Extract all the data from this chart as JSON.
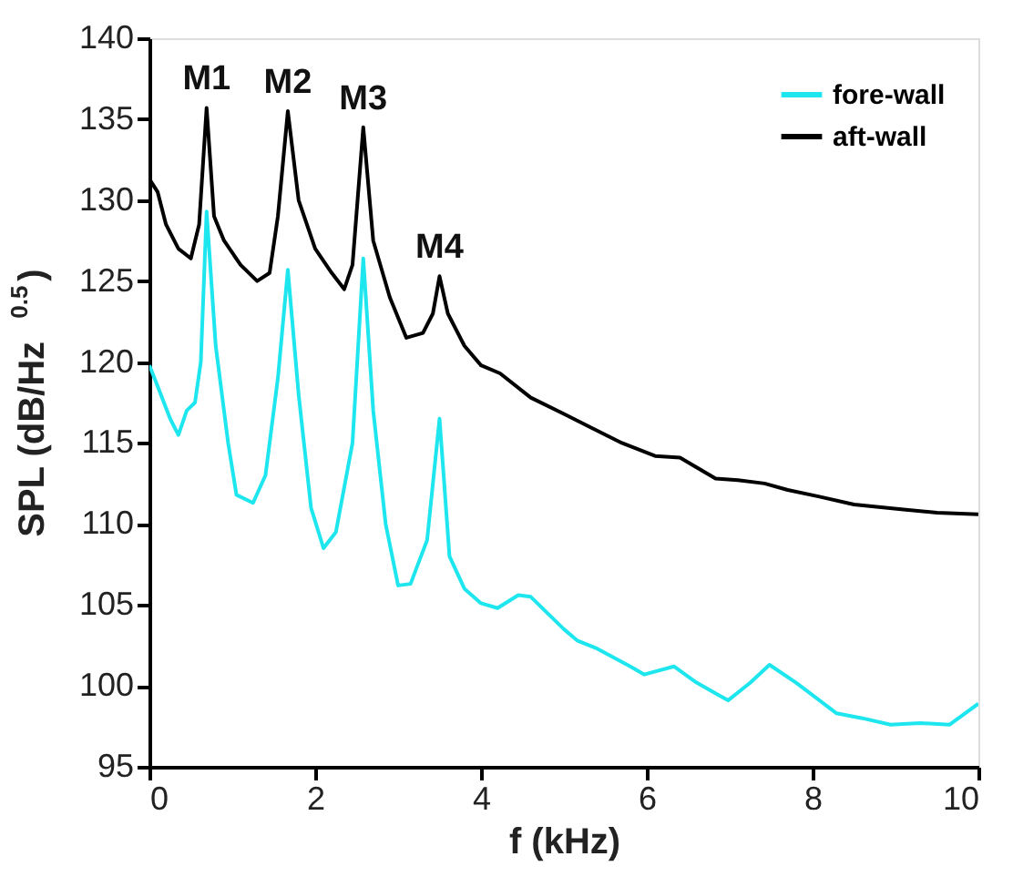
{
  "chart_data": {
    "type": "line",
    "xlabel": "f (kHz)",
    "ylabel": "SPL (dB/Hz$^{0.5}$)",
    "xlim": [
      0,
      10
    ],
    "xticks": [
      0,
      2,
      4,
      6,
      8,
      10
    ],
    "ylim": [
      95,
      140
    ],
    "yticks": [
      95,
      100,
      105,
      110,
      115,
      120,
      125,
      130,
      135,
      140
    ],
    "grid": false,
    "legend": "top right",
    "marker": "none",
    "line_style": "solid",
    "series": [
      {
        "name": "fore-wall",
        "color": "#1ee6ef",
        "x": [
          0,
          0.1,
          0.25,
          0.35,
          0.45,
          0.55,
          0.62,
          0.69,
          0.8,
          0.95,
          1.05,
          1.25,
          1.4,
          1.55,
          1.67,
          1.8,
          1.95,
          2.1,
          2.25,
          2.45,
          2.58,
          2.7,
          2.85,
          3.0,
          3.15,
          3.35,
          3.5,
          3.62,
          3.8,
          4.0,
          4.2,
          4.45,
          4.6,
          5.0,
          5.16,
          5.4,
          5.8,
          5.97,
          6.33,
          6.6,
          6.98,
          7.25,
          7.48,
          7.8,
          8.29,
          8.6,
          8.94,
          9.3,
          9.65,
          10.0
        ],
        "values": [
          119.8,
          118.5,
          116.5,
          115.5,
          117,
          117.5,
          120,
          129.3,
          121,
          115,
          111.8,
          111.3,
          113,
          119,
          125.7,
          118,
          111,
          108.5,
          109.5,
          115,
          126.4,
          117,
          110,
          106.2,
          106.3,
          109,
          116.5,
          108,
          106,
          105.1,
          104.8,
          105.6,
          105.5,
          103.5,
          102.8,
          102.3,
          101.2,
          100.7,
          101.2,
          100.2,
          99.1,
          100.2,
          101.3,
          100.2,
          98.3,
          98,
          97.6,
          97.7,
          97.6,
          98.9
        ]
      },
      {
        "name": "aft-wall",
        "color": "#000000",
        "x": [
          0,
          0.1,
          0.2,
          0.35,
          0.5,
          0.6,
          0.69,
          0.78,
          0.9,
          1.1,
          1.3,
          1.45,
          1.55,
          1.67,
          1.8,
          2.0,
          2.2,
          2.35,
          2.45,
          2.58,
          2.7,
          2.9,
          3.1,
          3.3,
          3.42,
          3.5,
          3.6,
          3.8,
          4.0,
          4.23,
          4.6,
          5.0,
          5.31,
          5.7,
          6.1,
          6.4,
          6.83,
          7.1,
          7.42,
          7.7,
          8.07,
          8.5,
          9.07,
          9.5,
          10.0
        ],
        "values": [
          131.3,
          130.5,
          128.5,
          127,
          126.4,
          128.5,
          135.7,
          129,
          127.5,
          126,
          125,
          125.5,
          129,
          135.5,
          130,
          127,
          125.5,
          124.5,
          126,
          134.5,
          127.5,
          124,
          121.5,
          121.8,
          123,
          125.3,
          123,
          121,
          119.8,
          119.3,
          117.8,
          116.8,
          116,
          115,
          114.2,
          114.1,
          112.8,
          112.7,
          112.5,
          112.1,
          111.7,
          111.2,
          110.9,
          110.7,
          110.6
        ]
      }
    ],
    "annotations": [
      {
        "text": "M1",
        "x": 0.69,
        "y": 135.7
      },
      {
        "text": "M2",
        "x": 1.67,
        "y": 135.5
      },
      {
        "text": "M3",
        "x": 2.58,
        "y": 134.5
      },
      {
        "text": "M4",
        "x": 3.5,
        "y": 125.3
      }
    ]
  }
}
